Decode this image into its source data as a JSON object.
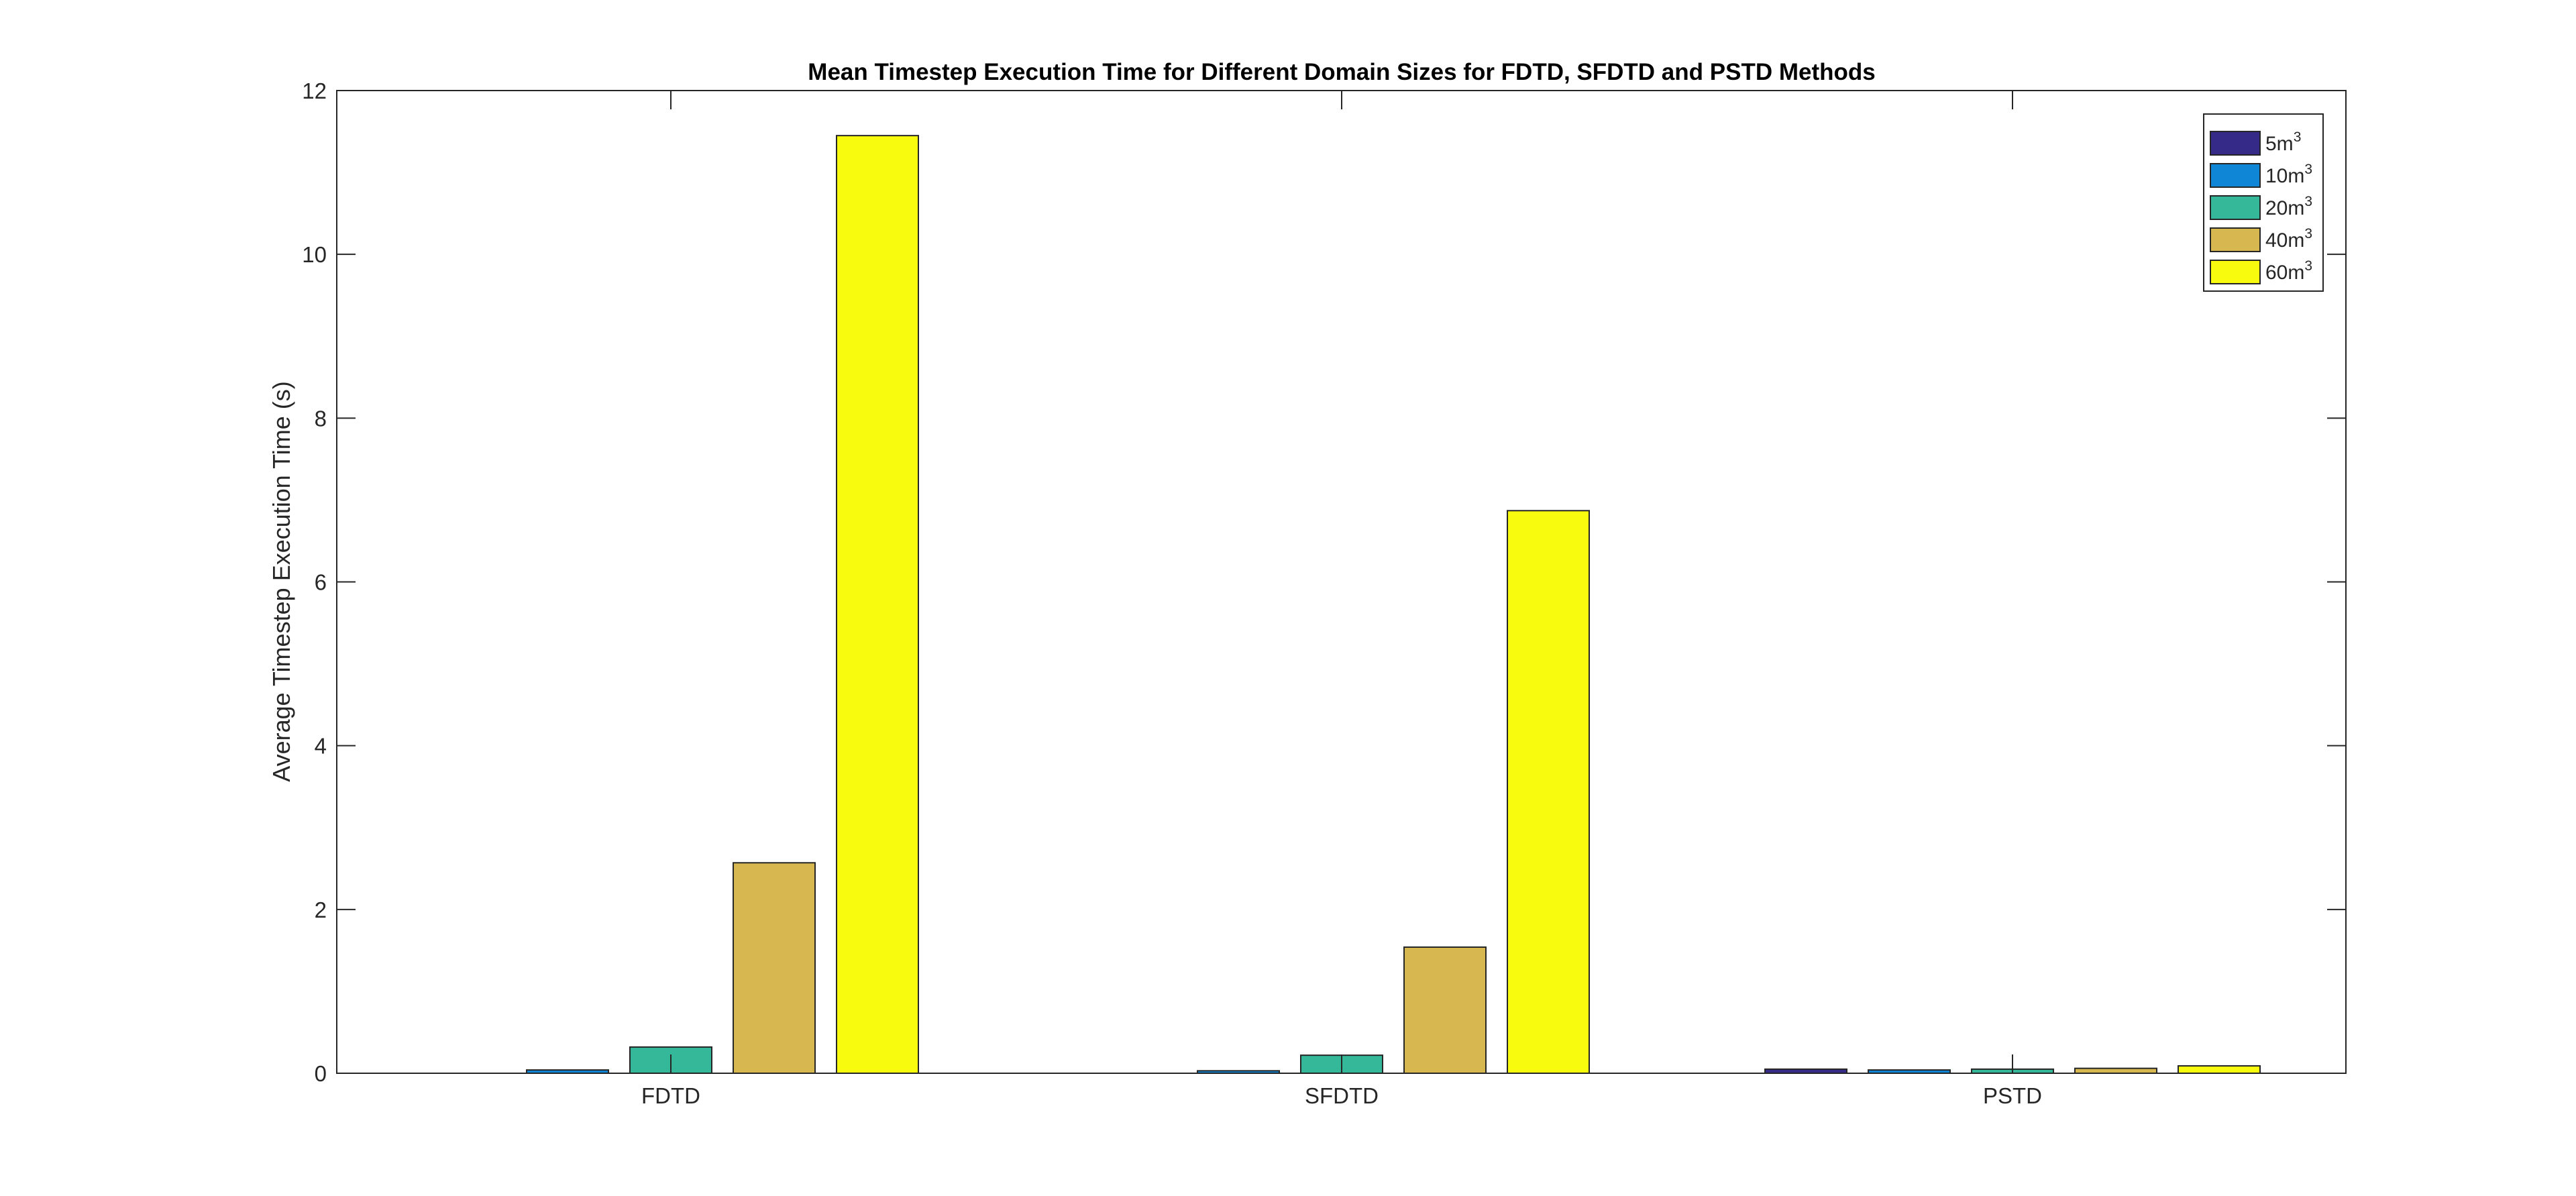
{
  "chart_data": {
    "type": "bar",
    "title": "Mean Timestep Execution Time for Different Domain Sizes for FDTD, SFDTD and PSTD Methods",
    "xlabel": "",
    "ylabel": "Average Timestep Execution Time (s)",
    "categories": [
      "FDTD",
      "SFDTD",
      "PSTD"
    ],
    "ylim": [
      0,
      12
    ],
    "yticks": [
      0,
      2,
      4,
      6,
      8,
      10,
      12
    ],
    "grid": false,
    "legend_position": "top-right",
    "series": [
      {
        "name": "5m",
        "sup": "3",
        "color": "#352a87",
        "values": [
          0.0,
          0.0,
          0.05
        ]
      },
      {
        "name": "10m",
        "sup": "3",
        "color": "#0f86d6",
        "values": [
          0.04,
          0.03,
          0.04
        ]
      },
      {
        "name": "20m",
        "sup": "3",
        "color": "#35b799",
        "values": [
          0.32,
          0.22,
          0.05
        ]
      },
      {
        "name": "40m",
        "sup": "3",
        "color": "#d7b850",
        "values": [
          2.57,
          1.54,
          0.06
        ]
      },
      {
        "name": "60m",
        "sup": "3",
        "color": "#f9fb0e",
        "values": [
          11.45,
          6.87,
          0.09
        ]
      }
    ]
  }
}
